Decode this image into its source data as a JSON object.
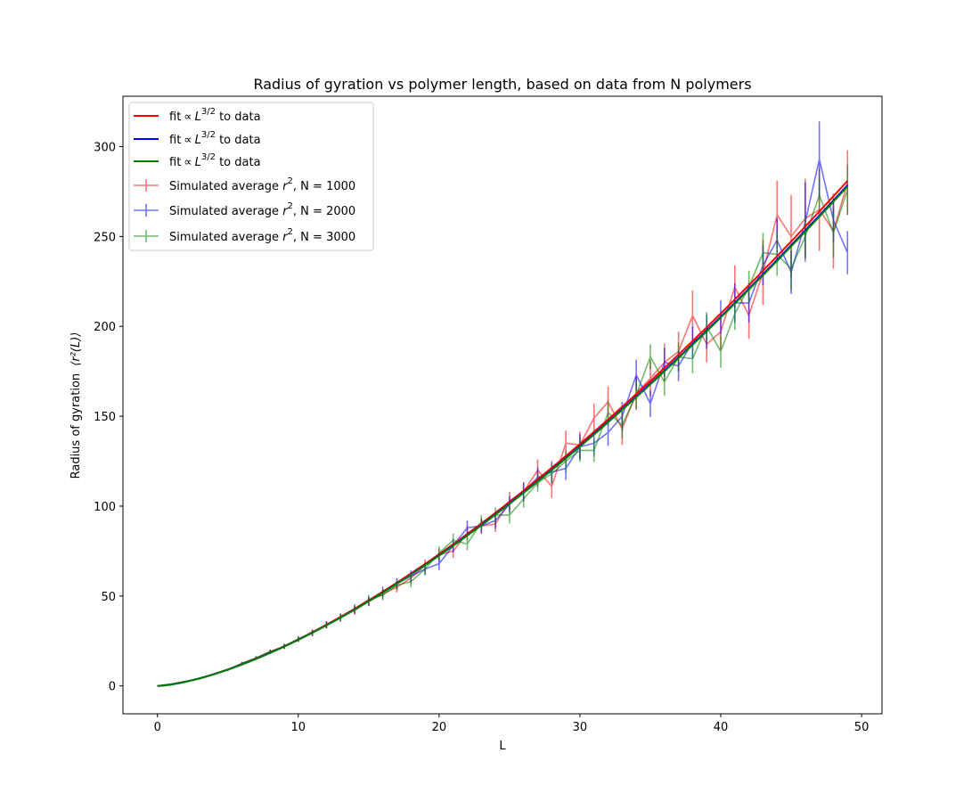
{
  "chart_data": {
    "type": "line",
    "title": "Radius of gyration vs polymer length, based on data from N polymers",
    "xlabel": "L",
    "ylabel_text": "Radius of gyration",
    "ylabel_math": "⟨r²(L)⟩",
    "xlim": [
      -2.45,
      51.45
    ],
    "ylim": [
      -15.5,
      328
    ],
    "xticks": [
      "0",
      "10",
      "20",
      "30",
      "40",
      "50"
    ],
    "yticks": [
      "0",
      "50",
      "100",
      "150",
      "200",
      "250",
      "300"
    ],
    "grid": false,
    "legend_placement": "top-left",
    "fit_exponent": 1.5,
    "x": [
      0,
      1,
      2,
      3,
      4,
      5,
      6,
      7,
      8,
      9,
      10,
      11,
      12,
      13,
      14,
      15,
      16,
      17,
      18,
      19,
      20,
      21,
      22,
      23,
      24,
      25,
      26,
      27,
      28,
      29,
      30,
      31,
      32,
      33,
      34,
      35,
      36,
      37,
      38,
      39,
      40,
      41,
      42,
      43,
      44,
      45,
      46,
      47,
      48,
      49
    ],
    "fits": [
      {
        "label_prefix": "fit",
        "label_suffix": " to data",
        "color": "#ff0000",
        "coef": 0.819
      },
      {
        "label_prefix": "fit",
        "label_suffix": " to data",
        "color": "#0000ff",
        "coef": 0.812
      },
      {
        "label_prefix": "fit",
        "label_suffix": " to data",
        "color": "#008000",
        "coef": 0.81
      }
    ],
    "series": [
      {
        "label_prefix": "Simulated average ",
        "label_suffix": ", N = 1000",
        "color": "#ff0000",
        "values": [
          0,
          1,
          2.5,
          4,
          6.5,
          9,
          12.5,
          15.5,
          19,
          22,
          26,
          29.5,
          34,
          38,
          42,
          47,
          51,
          55,
          60,
          67,
          73,
          75,
          85,
          89,
          90,
          103,
          108,
          120,
          111,
          135,
          134,
          149,
          158,
          143,
          163,
          171,
          180,
          186,
          206,
          190,
          197,
          222,
          206,
          230,
          262,
          250,
          260,
          265,
          253,
          280
        ],
        "errors": [
          0,
          0.2,
          0.3,
          0.4,
          0.5,
          0.6,
          0.8,
          1,
          1.2,
          1.4,
          1.6,
          1.8,
          2,
          2.2,
          2.4,
          2.6,
          2.8,
          3,
          3.2,
          3.4,
          3.6,
          3.8,
          4,
          4.2,
          4.4,
          5,
          5.5,
          6,
          6.5,
          7,
          7.5,
          8,
          8.5,
          9,
          9.5,
          10,
          10.5,
          11,
          14,
          10,
          10,
          12,
          13,
          18,
          19,
          23,
          22,
          23,
          21,
          18
        ]
      },
      {
        "label_prefix": "Simulated average ",
        "label_suffix": ", N = 2000",
        "color": "#0000ff",
        "values": [
          0,
          1,
          2.5,
          4,
          6.5,
          9,
          12.5,
          15.5,
          19,
          22,
          26,
          29.5,
          34,
          38,
          42.5,
          47,
          52.5,
          57,
          61,
          65,
          68,
          78,
          88,
          89,
          92,
          101,
          108,
          116,
          119,
          121,
          133,
          135,
          141,
          150,
          173,
          157,
          180,
          178,
          191,
          197,
          205,
          213,
          213,
          234,
          248,
          230,
          258,
          293,
          259,
          241
        ],
        "errors": [
          0,
          0.2,
          0.3,
          0.4,
          0.5,
          0.6,
          0.8,
          1,
          1.2,
          1.4,
          1.6,
          1.8,
          2,
          2.2,
          2.4,
          2.6,
          2.8,
          3,
          3.2,
          3.4,
          3.6,
          3.8,
          4,
          4.2,
          4.4,
          4.6,
          5,
          5.5,
          6,
          6.5,
          7,
          7,
          7.5,
          8,
          8.5,
          7.5,
          8,
          8.5,
          9,
          9.5,
          9.5,
          11,
          11,
          11,
          12,
          12,
          22,
          21,
          12,
          12
        ]
      },
      {
        "label_prefix": "Simulated average ",
        "label_suffix": ", N = 3000",
        "color": "#008000",
        "values": [
          0,
          1,
          2.5,
          4,
          6.5,
          9,
          12.5,
          15.5,
          19,
          22,
          26,
          29.5,
          34,
          38,
          43,
          48,
          50.5,
          56,
          58,
          65,
          74,
          81,
          79,
          91,
          95,
          95,
          104,
          113,
          118,
          125,
          131,
          131,
          152,
          145,
          162,
          183,
          169,
          183,
          182,
          200,
          186,
          207,
          222,
          241,
          240,
          232,
          250,
          273,
          252,
          276
        ],
        "errors": [
          0,
          0.2,
          0.3,
          0.4,
          0.5,
          0.6,
          0.8,
          1,
          1.2,
          1.4,
          1.6,
          1.8,
          2,
          2.2,
          2.4,
          2.6,
          2.8,
          3,
          3.2,
          3.4,
          3.6,
          3.8,
          3.5,
          4,
          4.2,
          4.5,
          4.8,
          5,
          5.5,
          6,
          6.5,
          6.5,
          7,
          7.5,
          8,
          7,
          7.5,
          8,
          8,
          8,
          9,
          9,
          9,
          11,
          12,
          12,
          12,
          10,
          14,
          14
        ]
      }
    ]
  }
}
